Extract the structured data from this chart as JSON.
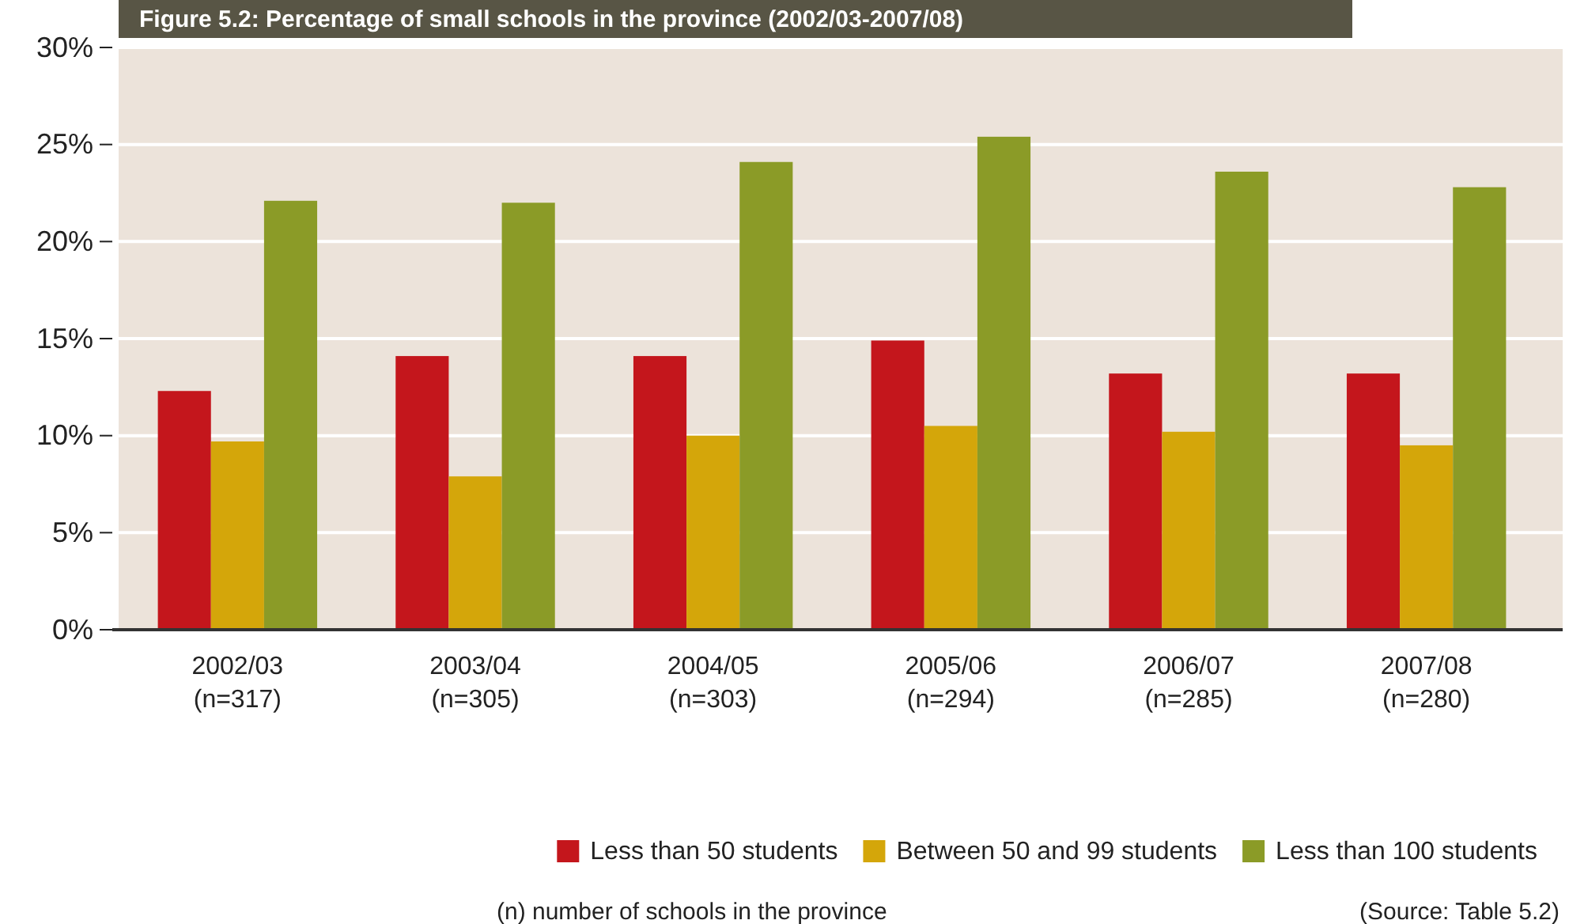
{
  "chart_data": {
    "type": "bar",
    "title": "Figure 5.2: Percentage of small schools in the province (2002/03-2007/08)",
    "categories": [
      "2002/03\n(n=317)",
      "2003/04\n(n=305)",
      "2004/05\n(n=303)",
      "2005/06\n(n=294)",
      "2006/07\n(n=285)",
      "2007/08\n(n=280)"
    ],
    "series": [
      {
        "name": "Less than 50 students",
        "color": "#c4161c",
        "values": [
          12.3,
          14.1,
          14.1,
          14.9,
          13.2,
          13.2
        ]
      },
      {
        "name": "Between 50 and 99 students",
        "color": "#d4a60a",
        "values": [
          9.7,
          7.9,
          10.0,
          10.5,
          10.2,
          9.5
        ]
      },
      {
        "name": "Less than 100 students",
        "color": "#8b9b27",
        "values": [
          22.1,
          22.0,
          24.1,
          25.4,
          23.6,
          22.8
        ]
      }
    ],
    "ylim": [
      0,
      30
    ],
    "yticks": [
      {
        "value": 0,
        "label": "0%"
      },
      {
        "value": 5,
        "label": "5%"
      },
      {
        "value": 10,
        "label": "10%"
      },
      {
        "value": 15,
        "label": "15%"
      },
      {
        "value": 20,
        "label": "20%"
      },
      {
        "value": 25,
        "label": "25%"
      },
      {
        "value": 30,
        "label": "30%"
      }
    ],
    "grid": "y",
    "legend": "bottom",
    "annotations": [
      "(n) number of schools in the province",
      "(Source: Table 5.2)"
    ]
  }
}
